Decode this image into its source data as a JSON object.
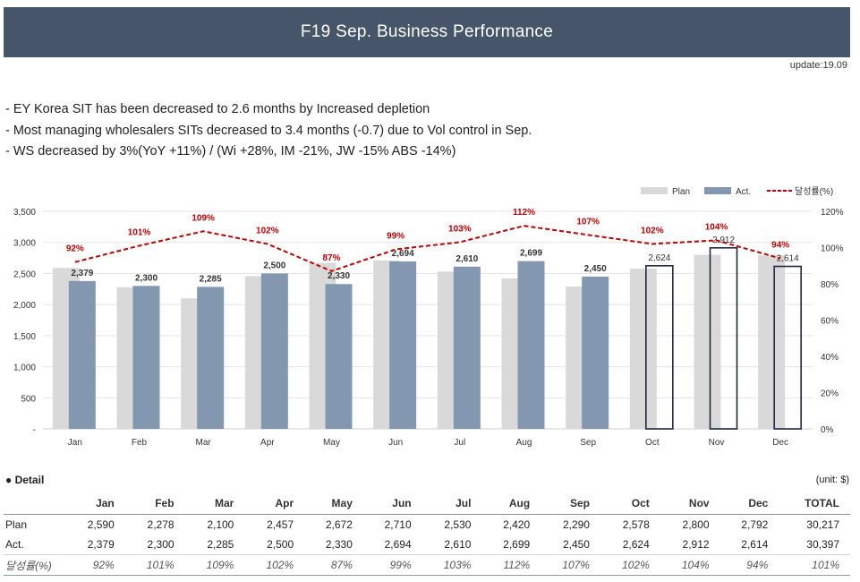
{
  "header": {
    "title": "F19 Sep. Business Performance",
    "update": "update:19.09"
  },
  "bullets": [
    "- EY Korea SIT has been decreased to 2.6 months by Increased depletion",
    "- Most managing wholesalers SITs decreased to 3.4 months (-0.7) due to Vol control in Sep.",
    "- WS decreased by 3%(YoY +11%) / (Wi +28%, IM -21%, JW -15% ABS -14%)"
  ],
  "chart_data": {
    "type": "bar",
    "categories": [
      "Jan",
      "Feb",
      "Mar",
      "Apr",
      "May",
      "Jun",
      "Jul",
      "Aug",
      "Sep",
      "Oct",
      "Nov",
      "Dec"
    ],
    "series": [
      {
        "name": "Plan",
        "kind": "bar",
        "color": "#d9d9d9",
        "values": [
          2590,
          2278,
          2100,
          2457,
          2672,
          2710,
          2530,
          2420,
          2290,
          2578,
          2800,
          2792
        ]
      },
      {
        "name": "Act.",
        "kind": "bar",
        "color": "#8497b0",
        "values": [
          2379,
          2300,
          2285,
          2500,
          2330,
          2694,
          2610,
          2699,
          2450,
          2624,
          2912,
          2614
        ]
      },
      {
        "name": "달성률(%)",
        "kind": "line",
        "axis": "right",
        "color": "#c00000",
        "dashed": true,
        "values": [
          92,
          101,
          109,
          102,
          87,
          99,
          103,
          112,
          107,
          102,
          104,
          94
        ]
      }
    ],
    "act_labels": [
      "2,379",
      "2,300",
      "2,285",
      "2,500",
      "2,330",
      "2,694",
      "2,610",
      "2,699",
      "2,450",
      "2,624",
      "2,912",
      "2,614"
    ],
    "rate_labels": [
      "92%",
      "101%",
      "109%",
      "102%",
      "87%",
      "99%",
      "103%",
      "112%",
      "107%",
      "102%",
      "104%",
      "94%"
    ],
    "forecast_months": [
      "Oct",
      "Nov",
      "Dec"
    ],
    "ylim": [
      0,
      3500
    ],
    "y_ticks": [
      "-",
      "500",
      "1,000",
      "1,500",
      "2,000",
      "2,500",
      "3,000",
      "3,500"
    ],
    "y2lim": [
      0,
      120
    ],
    "y2_ticks": [
      "0%",
      "20%",
      "40%",
      "60%",
      "80%",
      "100%",
      "120%"
    ],
    "grid": true,
    "legend_position": "top-right"
  },
  "detail": {
    "title": "Detail",
    "unit": "(unit: $)",
    "headers": [
      "",
      "Jan",
      "Feb",
      "Mar",
      "Apr",
      "May",
      "Jun",
      "Jul",
      "Aug",
      "Sep",
      "Oct",
      "Nov",
      "Dec",
      "TOTAL"
    ],
    "rows": [
      {
        "label": "Plan",
        "cells": [
          "2,590",
          "2,278",
          "2,100",
          "2,457",
          "2,672",
          "2,710",
          "2,530",
          "2,420",
          "2,290",
          "2,578",
          "2,800",
          "2,792",
          "30,217"
        ]
      },
      {
        "label": "Act.",
        "cells": [
          "2,379",
          "2,300",
          "2,285",
          "2,500",
          "2,330",
          "2,694",
          "2,610",
          "2,699",
          "2,450",
          "2,624",
          "2,912",
          "2,614",
          "30,397"
        ]
      },
      {
        "label": "달성률(%)",
        "cells": [
          "92%",
          "101%",
          "109%",
          "102%",
          "87%",
          "99%",
          "103%",
          "112%",
          "107%",
          "102%",
          "104%",
          "94%",
          "101%"
        ]
      }
    ]
  }
}
